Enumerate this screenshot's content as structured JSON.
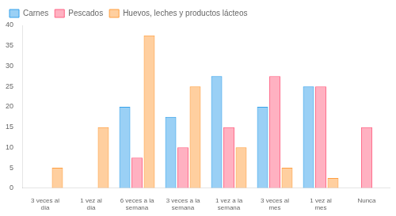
{
  "chart_data": {
    "type": "bar",
    "categories": [
      "3 veces al\ndía",
      "1 vez al\ndía",
      "6 veces a la\nsemana",
      "3 veces a la\nsemana",
      "1 vez a la\nsemana",
      "3 veces al\nmes",
      "1 vez al\nmes",
      "Nunca"
    ],
    "series": [
      {
        "name": "Carnes",
        "values": [
          0,
          0,
          20,
          17.5,
          27.5,
          20,
          25,
          0
        ]
      },
      {
        "name": "Pescados",
        "values": [
          0,
          0,
          7.5,
          10,
          15,
          27.5,
          25,
          15
        ]
      },
      {
        "name": "Huevos, leches y productos lácteos",
        "values": [
          5,
          15,
          37.5,
          25,
          10,
          5,
          2.5,
          0
        ]
      }
    ],
    "ylim": [
      0,
      40
    ],
    "yticks": [
      0,
      5,
      10,
      15,
      20,
      25,
      30,
      35,
      40
    ],
    "grid": false,
    "legend": "upper left"
  }
}
